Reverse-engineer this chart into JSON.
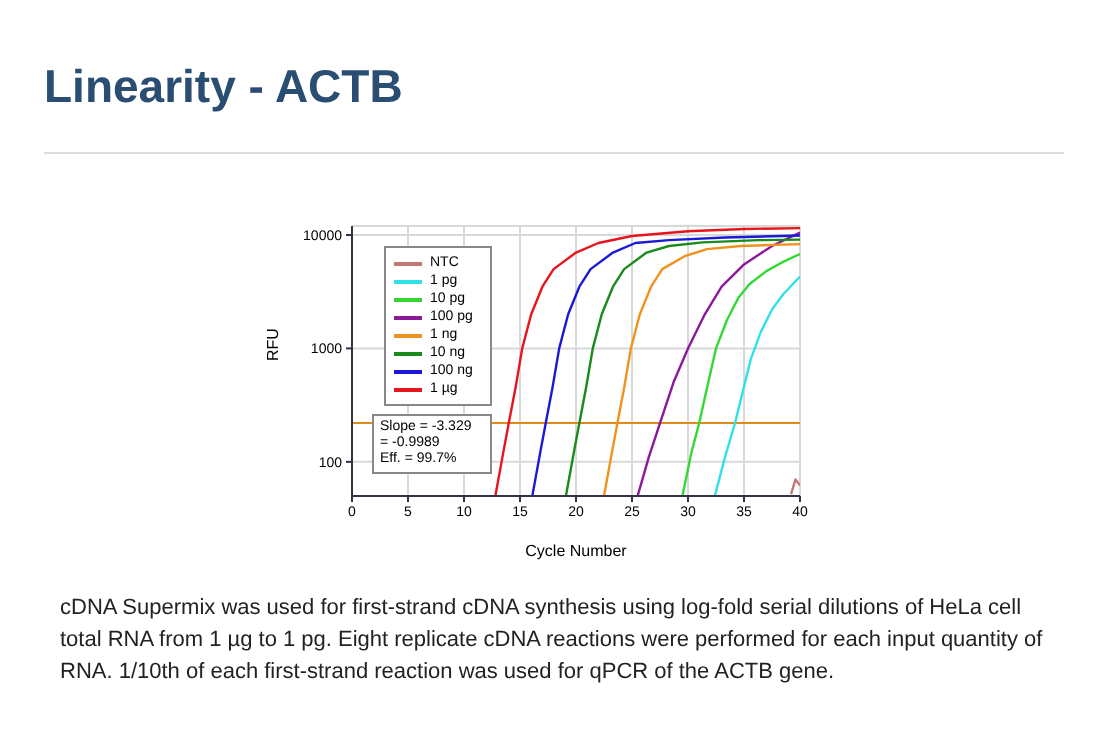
{
  "chart_data": {
    "type": "line",
    "title": "Linearity - ACTB",
    "xlabel": "Cycle Number",
    "ylabel": "RFU",
    "annotations": [
      "Slope = -3.329",
      "= -0.9989",
      "Eff. = 99.7%",
      "cDNA Supermix was used for first-strand cDNA synthesis using log-fold serial dilutions of HeLa cell total RNA from 1 µg to 1 pg. Eight replicate cDNA reactions were performed for each input quantity of RNA. 1/10th of each first-strand reaction was used for qPCR of the ACTB gene."
    ],
    "series": [
      {
        "name": "NTC",
        "color": "#c07878",
        "x": [
          39.2,
          39.6,
          40
        ],
        "values": [
          52,
          70,
          62
        ]
      },
      {
        "name": "1 pg",
        "color": "#33e0e8",
        "x": [
          32.4,
          33.3,
          34.2,
          34.9,
          35.6,
          36.5,
          37.5,
          38.5,
          40
        ],
        "values": [
          50,
          110,
          220,
          420,
          800,
          1400,
          2200,
          3000,
          4300
        ]
      },
      {
        "name": "10 pg",
        "color": "#33d833",
        "x": [
          29.5,
          30.3,
          31,
          31.7,
          32.5,
          33.5,
          34.5,
          35.5,
          37,
          38.5,
          40
        ],
        "values": [
          50,
          120,
          220,
          450,
          1000,
          1800,
          2800,
          3700,
          4800,
          5800,
          6800
        ]
      },
      {
        "name": "100 pg",
        "color": "#8a1a9a",
        "x": [
          25.5,
          26.5,
          27.5,
          28.7,
          30,
          31.5,
          33,
          35,
          37.5,
          40
        ],
        "values": [
          50,
          110,
          220,
          500,
          1000,
          2000,
          3500,
          5500,
          8000,
          10500
        ]
      },
      {
        "name": "1 ng",
        "color": "#f0921e",
        "x": [
          22.5,
          23.2,
          23.7,
          24.3,
          24.9,
          25.7,
          26.7,
          27.7,
          29.7,
          31.7,
          34.7,
          40
        ],
        "values": [
          50,
          120,
          220,
          450,
          1000,
          2000,
          3500,
          5000,
          6500,
          7500,
          8000,
          8300
        ]
      },
      {
        "name": "10 ng",
        "color": "#1a8a1a",
        "x": [
          19.1,
          19.8,
          20.3,
          20.9,
          21.5,
          22.3,
          23.3,
          24.3,
          26.3,
          28.3,
          31.3,
          36.3,
          40
        ],
        "values": [
          50,
          120,
          220,
          450,
          1000,
          2000,
          3500,
          5000,
          7000,
          8000,
          8600,
          9000,
          9100
        ]
      },
      {
        "name": "100 ng",
        "color": "#1a1ad6",
        "x": [
          16.1,
          16.8,
          17.3,
          17.9,
          18.5,
          19.3,
          20.3,
          21.3,
          23.3,
          25.3,
          28.3,
          33.3,
          38.3,
          40
        ],
        "values": [
          50,
          120,
          220,
          450,
          1000,
          2000,
          3500,
          5000,
          7000,
          8500,
          9000,
          9500,
          9800,
          9900
        ]
      },
      {
        "name": "1 µg",
        "color": "#e8141c",
        "x": [
          12.8,
          13.5,
          14,
          14.6,
          15.2,
          16,
          17,
          18,
          20,
          22,
          25,
          30,
          35,
          40
        ],
        "values": [
          50,
          120,
          220,
          450,
          1000,
          2000,
          3500,
          5000,
          7000,
          8500,
          9800,
          10800,
          11300,
          11500
        ]
      }
    ],
    "xlim": [
      0,
      40
    ],
    "xticks": [
      0,
      5,
      10,
      15,
      20,
      25,
      30,
      35,
      40
    ],
    "ylim": [
      50,
      12000
    ],
    "yticks": [
      100,
      1000,
      10000
    ],
    "log": "y",
    "grid": true,
    "legend": "top left",
    "ref_lines": [
      {
        "axis": "y",
        "value": 220,
        "color": "#e08a1a"
      }
    ]
  }
}
